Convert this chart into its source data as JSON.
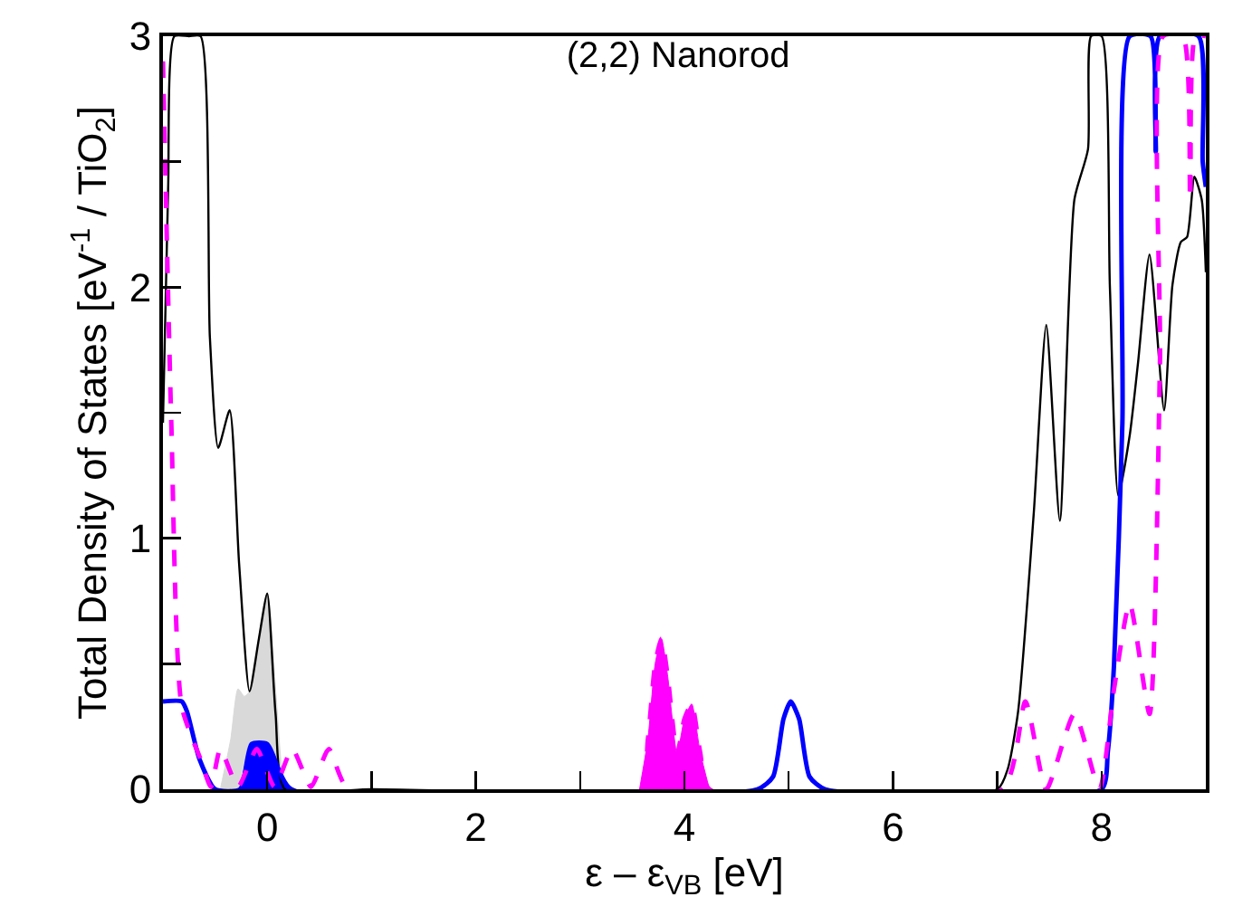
{
  "chart_data": {
    "type": "line",
    "title": "(2,2) Nanorod",
    "xlabel": "ε – ε$_{VB}$ [eV]",
    "ylabel": "Total Density of States [eV$^{-1}$ / TiO$_{2}$]",
    "xlim": [
      -1,
      9
    ],
    "xticks": [
      {
        "value": -1,
        "label": null
      },
      {
        "value": 0,
        "label": "0"
      },
      {
        "value": 1,
        "label": null
      },
      {
        "value": 2,
        "label": "2"
      },
      {
        "value": 3,
        "label": null
      },
      {
        "value": 4,
        "label": "4"
      },
      {
        "value": 5,
        "label": null
      },
      {
        "value": 6,
        "label": "6"
      },
      {
        "value": 7,
        "label": null
      },
      {
        "value": 8,
        "label": "8"
      }
    ],
    "ylim": [
      0,
      3
    ],
    "yticks": [
      0,
      {
        "value": 0.5,
        "label": null
      },
      1,
      {
        "value": 1.5,
        "label": null
      },
      2,
      {
        "value": 2.5,
        "label": null
      },
      3
    ],
    "series": [
      {
        "type": "area",
        "color": "#d9d9d9",
        "x": [
          -0.45,
          -0.35,
          -0.28,
          -0.22,
          -0.17,
          -0.08,
          0,
          0.08,
          0.15,
          0.2
        ],
        "values": [
          0,
          0.2,
          0.4,
          0.37,
          0.39,
          0.6,
          0.78,
          0.4,
          0.05,
          0
        ]
      },
      {
        "type": "area",
        "color": "#0000ff",
        "x": [
          -0.26,
          -0.2,
          -0.15,
          -0.08,
          0,
          0.08,
          0.16,
          0.23
        ],
        "values": [
          0,
          0.12,
          0.18,
          0.19,
          0.18,
          0.12,
          0.03,
          0
        ]
      },
      {
        "type": "area",
        "color": "#ff00ff",
        "x": [
          3.57,
          3.65,
          3.72,
          3.78,
          3.84,
          3.93,
          4.0,
          4.07,
          4.15,
          4.24
        ],
        "values": [
          0,
          0.2,
          0.5,
          0.6,
          0.45,
          0.14,
          0.28,
          0.34,
          0.15,
          0
        ]
      },
      {
        "type": "line",
        "color": "#000000",
        "x": [
          -1,
          -0.95,
          -0.89,
          -0.75,
          -0.64,
          -0.55,
          -0.47,
          -0.36,
          -0.27,
          -0.17,
          -0.08,
          0,
          0.08,
          0.17,
          1,
          7.0,
          7.1,
          7.2,
          7.35,
          7.47,
          7.6,
          7.74,
          7.87,
          7.9,
          8.0,
          8.08,
          8.16,
          8.27,
          8.35,
          8.46,
          8.6,
          8.68,
          8.76,
          8.82,
          8.89,
          8.96,
          9
        ],
        "values": [
          1.46,
          2.4,
          3,
          3,
          3,
          1.8,
          1.36,
          1.51,
          0.9,
          0.39,
          0.6,
          0.78,
          0.3,
          0,
          0,
          0,
          0.08,
          0.31,
          1.1,
          1.85,
          1.07,
          2.35,
          2.55,
          3,
          3,
          2.0,
          1.17,
          1.41,
          1.7,
          2.13,
          1.51,
          2.01,
          2.18,
          2.2,
          2.44,
          2.35,
          2.06
        ]
      },
      {
        "type": "line",
        "color": "#0000ff",
        "x": [
          -1,
          -0.82,
          -0.77,
          -0.65,
          -0.5,
          -0.26,
          -0.15,
          0,
          0.23,
          4.7,
          4.85,
          4.95,
          5.02,
          5.1,
          5.2,
          5.35,
          8.0,
          8.06,
          8.12,
          8.2,
          8.27,
          8.47,
          8.52,
          8.56,
          8.93,
          8.97,
          9
        ],
        "values": [
          0.35,
          0.35,
          0.31,
          0.12,
          0,
          0,
          0.18,
          0.18,
          0,
          0,
          0.05,
          0.28,
          0.35,
          0.28,
          0.05,
          0,
          0,
          0.15,
          0.5,
          1.46,
          3,
          3,
          2.54,
          3,
          3,
          2.5,
          2.4
        ]
      },
      {
        "type": "line",
        "color": "#ff00ff",
        "line_style": "dashed",
        "x": [
          -1,
          -0.92,
          -0.82,
          -0.64,
          -0.54,
          -0.45,
          -0.28,
          -0.1,
          0.07,
          0.24,
          0.42,
          0.59,
          0.78,
          3.57,
          3.65,
          3.72,
          3.78,
          3.84,
          3.93,
          4.0,
          4.07,
          4.15,
          4.24,
          7.05,
          7.27,
          7.47,
          7.74,
          7.98,
          8.12,
          8.27,
          8.46,
          8.56,
          8.59,
          8.78,
          8.85,
          8.9,
          9
        ],
        "values": [
          2.9,
          1.46,
          0.33,
          0.12,
          0.01,
          0.16,
          0.01,
          0.16,
          0.01,
          0.16,
          0.01,
          0.16,
          0,
          0,
          0.2,
          0.5,
          0.6,
          0.45,
          0.14,
          0.28,
          0.34,
          0.15,
          0,
          0,
          0.35,
          0,
          0.3,
          0,
          0.4,
          0.74,
          0.3,
          1.7,
          3,
          3,
          2.35,
          3,
          3
        ]
      }
    ]
  }
}
